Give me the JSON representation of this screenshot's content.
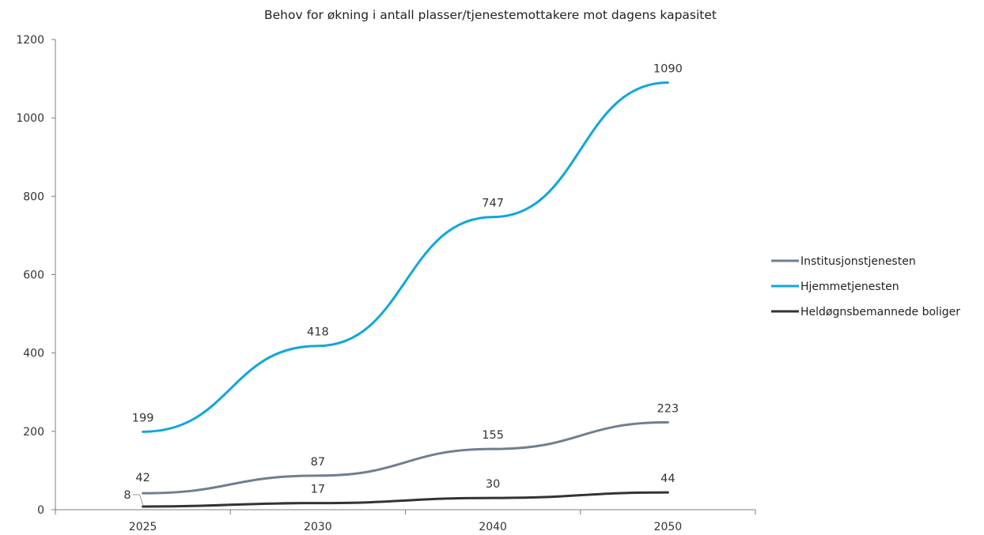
{
  "chart_data": {
    "type": "line",
    "title": "Behov for økning i antall plasser/tjenestemottakere mot dagens kapasitet",
    "xlabel": "",
    "ylabel": "",
    "categories": [
      "2025",
      "2030",
      "2040",
      "2050"
    ],
    "ylim": [
      0,
      1200
    ],
    "yticks": [
      0,
      200,
      400,
      600,
      800,
      1000,
      1200
    ],
    "grid": false,
    "legend_position": "right",
    "series": [
      {
        "name": "Institusjonstjenesten",
        "color": "#6e7f91",
        "values": [
          42,
          87,
          155,
          223
        ]
      },
      {
        "name": "Hjemmetjenesten",
        "color": "#10a6dc",
        "values": [
          199,
          418,
          747,
          1090
        ]
      },
      {
        "name": "Heldøgnsbemannede boliger",
        "color": "#333333",
        "values": [
          8,
          17,
          30,
          44
        ]
      }
    ]
  }
}
